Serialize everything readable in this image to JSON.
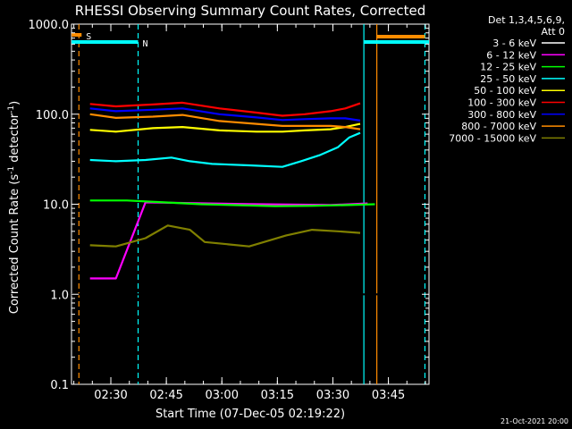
{
  "chart_data": {
    "type": "line",
    "title": "RHESSI Observing Summary Count Rates, Corrected",
    "xlabel": "Start Time (07-Dec-05 02:19:22)",
    "ylabel_main": "Corrected Count Rate (s",
    "ylabel_sup": "-1",
    "ylabel_tail": " detector",
    "ylabel_close": ")",
    "yscale": "log",
    "ylim": [
      0.1,
      1000.0
    ],
    "xlim": [
      "02:19:22",
      "03:56:00"
    ],
    "x_ticks": [
      "02:30",
      "02:45",
      "03:00",
      "03:15",
      "03:30",
      "03:45"
    ],
    "y_ticks": [
      "0.1",
      "1.0",
      "10.0",
      "100.0",
      "1000.0"
    ],
    "legend_header": [
      "Det 1,3,4,5,6,9,",
      "Att 0"
    ],
    "legend_position": "right",
    "footer_date": "21-Oct-2021 20:00",
    "region_labels": {
      "saa": "S",
      "night": "N"
    },
    "series": [
      {
        "name": "3 - 6 keV",
        "color": "#000000",
        "values": [
          [
            0,
            1.0
          ],
          [
            85,
            1.0
          ]
        ]
      },
      {
        "name": "6 - 12 keV",
        "color": "#ff00ff",
        "values": [
          [
            5,
            1.5
          ],
          [
            12,
            1.5
          ],
          [
            20,
            10.5
          ],
          [
            50,
            10.0
          ],
          [
            70,
            9.8
          ],
          [
            80,
            10.2
          ]
        ]
      },
      {
        "name": "12 - 25 keV",
        "color": "#00ff00",
        "values": [
          [
            5,
            11
          ],
          [
            15,
            11
          ],
          [
            25,
            10.5
          ],
          [
            35,
            10
          ],
          [
            55,
            9.5
          ],
          [
            65,
            9.6
          ],
          [
            75,
            9.8
          ],
          [
            82,
            10
          ]
        ]
      },
      {
        "name": "25 - 50 keV",
        "color": "#00ffff",
        "values": [
          [
            5,
            31
          ],
          [
            12,
            30
          ],
          [
            20,
            31
          ],
          [
            27,
            33
          ],
          [
            32,
            30
          ],
          [
            38,
            28
          ],
          [
            48,
            27
          ],
          [
            57,
            26
          ],
          [
            62,
            30
          ],
          [
            67,
            35
          ],
          [
            72,
            43
          ],
          [
            75,
            55
          ],
          [
            78,
            62
          ]
        ]
      },
      {
        "name": "50 - 100 keV",
        "color": "#ffff00",
        "values": [
          [
            5,
            67
          ],
          [
            12,
            64
          ],
          [
            22,
            70
          ],
          [
            30,
            72
          ],
          [
            40,
            66
          ],
          [
            50,
            64
          ],
          [
            57,
            64
          ],
          [
            63,
            66
          ],
          [
            70,
            68
          ],
          [
            74,
            72
          ],
          [
            78,
            78
          ]
        ]
      },
      {
        "name": "100 - 300 keV",
        "color": "#ff0000",
        "values": [
          [
            5,
            130
          ],
          [
            12,
            122
          ],
          [
            22,
            128
          ],
          [
            30,
            134
          ],
          [
            40,
            116
          ],
          [
            50,
            104
          ],
          [
            57,
            96
          ],
          [
            63,
            100
          ],
          [
            70,
            108
          ],
          [
            74,
            116
          ],
          [
            78,
            132
          ]
        ]
      },
      {
        "name": "300 - 800 keV",
        "color": "#0000ff",
        "values": [
          [
            5,
            116
          ],
          [
            12,
            108
          ],
          [
            22,
            112
          ],
          [
            30,
            116
          ],
          [
            40,
            100
          ],
          [
            50,
            92
          ],
          [
            57,
            86
          ],
          [
            63,
            88
          ],
          [
            70,
            90
          ],
          [
            74,
            90
          ],
          [
            78,
            85
          ]
        ]
      },
      {
        "name": "800 - 7000 keV",
        "color": "#ff8c00",
        "values": [
          [
            5,
            100
          ],
          [
            12,
            91
          ],
          [
            22,
            94
          ],
          [
            30,
            98
          ],
          [
            40,
            84
          ],
          [
            50,
            78
          ],
          [
            57,
            74
          ],
          [
            63,
            74
          ],
          [
            70,
            74
          ],
          [
            74,
            72
          ],
          [
            78,
            68
          ]
        ]
      },
      {
        "name": "7000 - 15000 keV",
        "color": "#808000",
        "values": [
          [
            5,
            3.5
          ],
          [
            12,
            3.4
          ],
          [
            20,
            4.2
          ],
          [
            26,
            5.8
          ],
          [
            32,
            5.2
          ],
          [
            36,
            3.8
          ],
          [
            42,
            3.6
          ],
          [
            48,
            3.4
          ],
          [
            52,
            3.8
          ],
          [
            58,
            4.5
          ],
          [
            65,
            5.2
          ],
          [
            72,
            5.0
          ],
          [
            78,
            4.8
          ]
        ]
      }
    ],
    "x_minutes": {
      "start": 0,
      "end": 96.6,
      "tick_min": [
        10.63,
        25.63,
        40.63,
        55.63,
        70.63,
        85.63
      ]
    },
    "markers": [
      {
        "kind": "saa",
        "color": "#ff8c00",
        "style": "dashed",
        "minute": 2.0
      },
      {
        "kind": "night",
        "color": "#00ffff",
        "style": "dashed",
        "minute": 18.0
      },
      {
        "kind": "night",
        "color": "#00ffff",
        "style": "solid",
        "minute": 79.0
      },
      {
        "kind": "saa",
        "color": "#ff8c00",
        "style": "solid",
        "minute": 82.5
      },
      {
        "kind": "night",
        "color": "#00ffff",
        "style": "dashed",
        "minute": 95.5
      }
    ]
  }
}
